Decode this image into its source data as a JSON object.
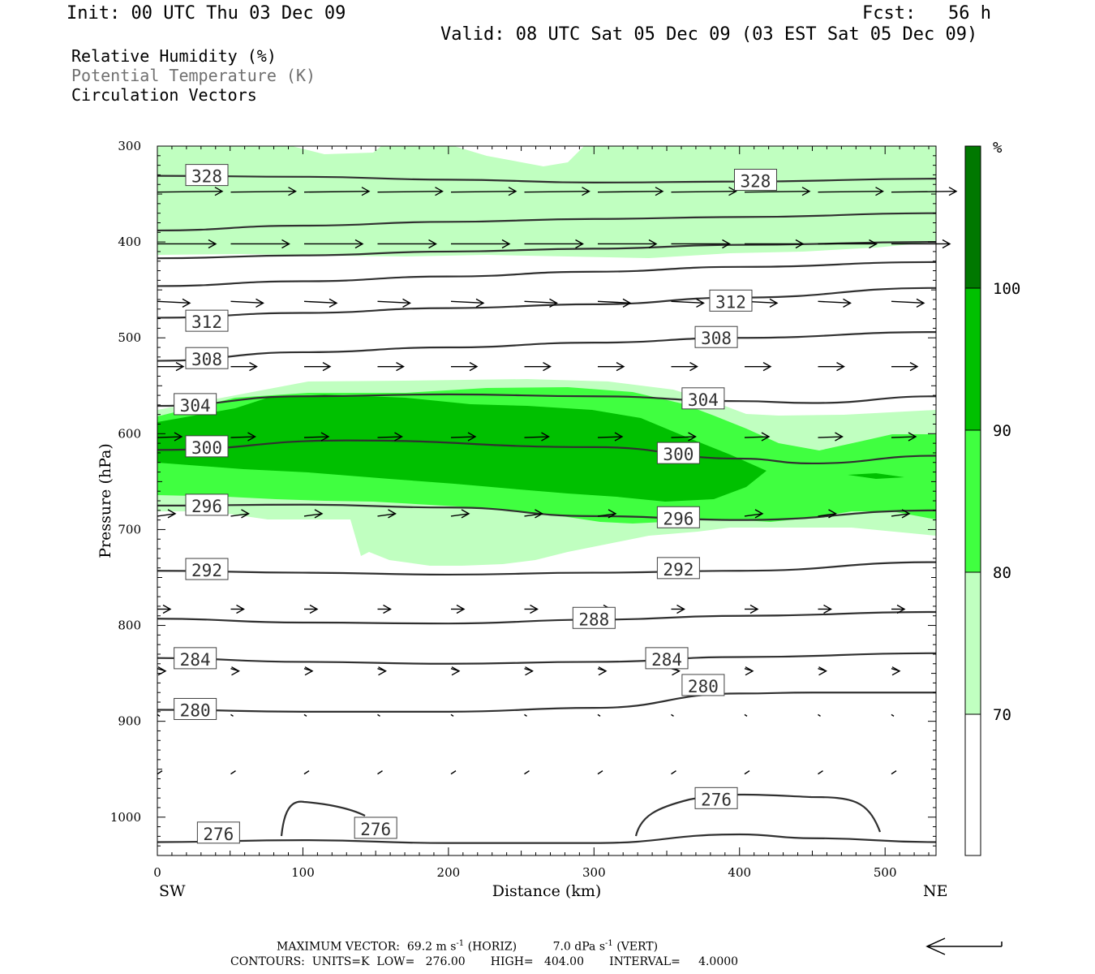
{
  "header": {
    "init": "Init: 00 UTC Thu 03 Dec 09",
    "fcst": "Fcst:   56 h",
    "valid": "Valid: 08 UTC Sat 05 Dec 09 (03 EST Sat 05 Dec 09)"
  },
  "fields": [
    "Relative Humidity (%)",
    "Potential Temperature (K)",
    "Circulation Vectors"
  ],
  "colors": {
    "rh70": "#c0ffc0",
    "rh80": "#40ff40",
    "rh90": "#00c000",
    "rh100": "#007800",
    "contour": "#303030"
  },
  "footer": {
    "max_vector": "MAXIMUM VECTOR:  69.2 m s",
    "max_vector_horiz": "(HORIZ)",
    "max_vector_vert": "7.0 dPa s",
    "max_vector_vert_unit": "(VERT)",
    "exp": "-1",
    "contours": "CONTOURS:  UNITS=K  LOW=   276.00       HIGH=   404.00       INTERVAL=     4.0000"
  },
  "chart_data": {
    "type": "cross-section",
    "xlabel": "Distance (km)",
    "ylabel": "Pressure (hPa)",
    "x_ticks": [
      "0",
      "100",
      "200",
      "300",
      "400",
      "500"
    ],
    "y_ticks": [
      "300",
      "400",
      "500",
      "600",
      "700",
      "800",
      "900",
      "1000"
    ],
    "xlim": [
      0,
      535
    ],
    "ylim": [
      300,
      1040
    ],
    "left_end_label": "SW",
    "right_end_label": "NE",
    "colorbar": {
      "unit": "%",
      "levels": [
        "70",
        "80",
        "90",
        "100"
      ]
    },
    "theta_contours": [
      {
        "value": 328,
        "label": "328",
        "label_pos": [
          [
            34,
            331
          ],
          [
            411,
            336
          ]
        ],
        "points": [
          [
            0,
            331
          ],
          [
            100,
            332
          ],
          [
            200,
            335
          ],
          [
            300,
            338
          ],
          [
            400,
            337
          ],
          [
            535,
            334
          ]
        ]
      },
      {
        "value": 324,
        "points": [
          [
            0,
            388
          ],
          [
            100,
            383
          ],
          [
            200,
            379
          ],
          [
            300,
            376
          ],
          [
            400,
            374
          ],
          [
            535,
            370
          ]
        ]
      },
      {
        "value": 320,
        "points": [
          [
            0,
            417
          ],
          [
            100,
            414
          ],
          [
            200,
            410
          ],
          [
            300,
            407
          ],
          [
            400,
            403
          ],
          [
            535,
            400
          ]
        ]
      },
      {
        "value": 316,
        "points": [
          [
            0,
            446
          ],
          [
            100,
            441
          ],
          [
            200,
            436
          ],
          [
            300,
            431
          ],
          [
            400,
            426
          ],
          [
            535,
            421
          ]
        ]
      },
      {
        "value": 312,
        "label": "312",
        "label_pos": [
          [
            34,
            483
          ],
          [
            394,
            462
          ]
        ],
        "points": [
          [
            0,
            479
          ],
          [
            100,
            474
          ],
          [
            200,
            469
          ],
          [
            300,
            465
          ],
          [
            400,
            458
          ],
          [
            535,
            448
          ]
        ]
      },
      {
        "value": 308,
        "label": "308",
        "label_pos": [
          [
            34,
            522
          ],
          [
            384,
            500
          ]
        ],
        "points": [
          [
            0,
            524
          ],
          [
            100,
            515
          ],
          [
            200,
            510
          ],
          [
            300,
            505
          ],
          [
            400,
            500
          ],
          [
            535,
            494
          ]
        ]
      },
      {
        "value": 304,
        "label": "304",
        "label_pos": [
          [
            26,
            570
          ],
          [
            375,
            564
          ]
        ],
        "points": [
          [
            0,
            571
          ],
          [
            100,
            561
          ],
          [
            200,
            559
          ],
          [
            300,
            561
          ],
          [
            400,
            566
          ],
          [
            450,
            568
          ],
          [
            535,
            561
          ]
        ]
      },
      {
        "value": 300,
        "label": "300",
        "label_pos": [
          [
            34,
            614
          ],
          [
            358,
            621
          ]
        ],
        "points": [
          [
            0,
            617
          ],
          [
            130,
            607
          ],
          [
            300,
            614
          ],
          [
            400,
            626
          ],
          [
            450,
            631
          ],
          [
            535,
            623
          ]
        ]
      },
      {
        "value": 296,
        "label": "296",
        "label_pos": [
          [
            34,
            675
          ],
          [
            358,
            688
          ]
        ],
        "points": [
          [
            0,
            675
          ],
          [
            100,
            674
          ],
          [
            200,
            677
          ],
          [
            300,
            686
          ],
          [
            400,
            690
          ],
          [
            535,
            680
          ]
        ]
      },
      {
        "value": 292,
        "label": "292",
        "label_pos": [
          [
            34,
            742
          ],
          [
            358,
            741
          ]
        ],
        "points": [
          [
            0,
            743
          ],
          [
            100,
            745
          ],
          [
            200,
            747
          ],
          [
            300,
            745
          ],
          [
            400,
            743
          ],
          [
            535,
            734
          ]
        ]
      },
      {
        "value": 288,
        "label": "288",
        "label_pos": [
          [
            300,
            793
          ]
        ],
        "points": [
          [
            0,
            793
          ],
          [
            100,
            797
          ],
          [
            200,
            798
          ],
          [
            300,
            794
          ],
          [
            400,
            790
          ],
          [
            535,
            786
          ]
        ]
      },
      {
        "value": 284,
        "label": "284",
        "label_pos": [
          [
            26,
            835
          ],
          [
            350,
            835
          ]
        ],
        "points": [
          [
            0,
            834
          ],
          [
            100,
            838
          ],
          [
            200,
            840
          ],
          [
            300,
            838
          ],
          [
            400,
            833
          ],
          [
            535,
            829
          ]
        ]
      },
      {
        "value": 280,
        "label": "280",
        "label_pos": [
          [
            26,
            888
          ],
          [
            375,
            863
          ]
        ],
        "points": [
          [
            0,
            888
          ],
          [
            100,
            890
          ],
          [
            200,
            890
          ],
          [
            300,
            886
          ],
          [
            400,
            871
          ],
          [
            450,
            870
          ],
          [
            535,
            870
          ]
        ]
      },
      {
        "value": 276,
        "label": "276",
        "label_pos": [
          [
            42,
            1017
          ],
          [
            150,
            1012
          ],
          [
            384,
            981
          ]
        ],
        "points": [
          [
            0,
            1026
          ],
          [
            100,
            1024
          ],
          [
            200,
            1027
          ],
          [
            300,
            1027
          ],
          [
            400,
            1018
          ],
          [
            450,
            1022
          ],
          [
            535,
            1026
          ]
        ]
      }
    ]
  }
}
